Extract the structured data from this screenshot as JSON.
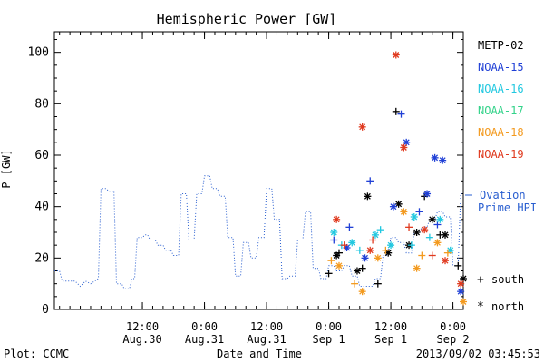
{
  "chart_data": {
    "type": "scatter",
    "title": "Hemispheric Power [GW]",
    "ylabel": "P [GW]",
    "xlabel": "Date and Time",
    "ylim": [
      0,
      108
    ],
    "xlim": [
      "2013-08-29T19:00",
      "2013-09-02T02:00"
    ],
    "grid": false,
    "y_ticks": [
      0,
      20,
      40,
      60,
      80,
      100
    ],
    "x_ticks": [
      {
        "t": "2013-08-30T12:00",
        "line1": "12:00",
        "line2": "Aug.30"
      },
      {
        "t": "2013-08-31T00:00",
        "line1": "0:00",
        "line2": "Aug.31"
      },
      {
        "t": "2013-08-31T12:00",
        "line1": "12:00",
        "line2": "Aug.31"
      },
      {
        "t": "2013-09-01T00:00",
        "line1": "0:00",
        "line2": "Sep 1"
      },
      {
        "t": "2013-09-01T12:00",
        "line1": "12:00",
        "line2": "Sep 1"
      },
      {
        "t": "2013-09-02T00:00",
        "line1": "0:00",
        "line2": "Sep 2"
      }
    ],
    "legend_placement": "right",
    "legend": [
      {
        "name": "METP-02",
        "color": "#000000"
      },
      {
        "name": "NOAA-15",
        "color": "#1f3fd6"
      },
      {
        "name": "NOAA-16",
        "color": "#22c8e0"
      },
      {
        "name": "NOAA-17",
        "color": "#33d38a"
      },
      {
        "name": "NOAA-18",
        "color": "#f39a1f"
      },
      {
        "name": "NOAA-19",
        "color": "#e03a1f"
      }
    ],
    "ovation": {
      "name_line1": "Ovation",
      "name_line2": "Prime HPI",
      "color": "#2a5fd0",
      "points": [
        [
          "2013-08-29T19:00",
          15
        ],
        [
          "2013-08-29T20:00",
          15
        ],
        [
          "2013-08-29T20:30",
          11
        ],
        [
          "2013-08-29T23:00",
          11
        ],
        [
          "2013-08-30T00:00",
          9
        ],
        [
          "2013-08-30T01:00",
          11
        ],
        [
          "2013-08-30T02:00",
          10
        ],
        [
          "2013-08-30T03:30",
          12
        ],
        [
          "2013-08-30T04:00",
          47
        ],
        [
          "2013-08-30T05:00",
          47
        ],
        [
          "2013-08-30T05:30",
          46
        ],
        [
          "2013-08-30T06:30",
          46
        ],
        [
          "2013-08-30T07:00",
          10
        ],
        [
          "2013-08-30T08:00",
          10
        ],
        [
          "2013-08-30T08:30",
          8
        ],
        [
          "2013-08-30T09:30",
          8
        ],
        [
          "2013-08-30T10:00",
          12
        ],
        [
          "2013-08-30T10:30",
          12
        ],
        [
          "2013-08-30T11:00",
          28
        ],
        [
          "2013-08-30T12:00",
          28
        ],
        [
          "2013-08-30T12:30",
          29
        ],
        [
          "2013-08-30T13:00",
          29
        ],
        [
          "2013-08-30T13:30",
          27
        ],
        [
          "2013-08-30T14:30",
          27
        ],
        [
          "2013-08-30T15:00",
          25
        ],
        [
          "2013-08-30T16:00",
          25
        ],
        [
          "2013-08-30T16:30",
          23
        ],
        [
          "2013-08-30T17:30",
          23
        ],
        [
          "2013-08-30T18:00",
          21
        ],
        [
          "2013-08-30T19:00",
          21
        ],
        [
          "2013-08-30T19:30",
          45
        ],
        [
          "2013-08-30T20:30",
          45
        ],
        [
          "2013-08-30T21:00",
          27
        ],
        [
          "2013-08-30T22:00",
          27
        ],
        [
          "2013-08-30T22:30",
          45
        ],
        [
          "2013-08-30T23:30",
          45
        ],
        [
          "2013-08-31T00:00",
          52
        ],
        [
          "2013-08-31T01:00",
          52
        ],
        [
          "2013-08-31T01:30",
          47
        ],
        [
          "2013-08-31T02:30",
          47
        ],
        [
          "2013-08-31T03:00",
          44
        ],
        [
          "2013-08-31T04:00",
          44
        ],
        [
          "2013-08-31T04:30",
          28
        ],
        [
          "2013-08-31T05:30",
          28
        ],
        [
          "2013-08-31T06:00",
          13
        ],
        [
          "2013-08-31T07:00",
          13
        ],
        [
          "2013-08-31T07:30",
          26
        ],
        [
          "2013-08-31T08:30",
          26
        ],
        [
          "2013-08-31T09:00",
          20
        ],
        [
          "2013-08-31T10:00",
          20
        ],
        [
          "2013-08-31T10:30",
          28
        ],
        [
          "2013-08-31T11:30",
          28
        ],
        [
          "2013-08-31T12:00",
          47
        ],
        [
          "2013-08-31T13:00",
          47
        ],
        [
          "2013-08-31T13:30",
          35
        ],
        [
          "2013-08-31T14:30",
          35
        ],
        [
          "2013-08-31T15:00",
          12
        ],
        [
          "2013-08-31T16:00",
          12
        ],
        [
          "2013-08-31T16:30",
          13
        ],
        [
          "2013-08-31T17:30",
          13
        ],
        [
          "2013-08-31T18:00",
          27
        ],
        [
          "2013-08-31T19:00",
          27
        ],
        [
          "2013-08-31T19:30",
          38
        ],
        [
          "2013-08-31T20:30",
          38
        ],
        [
          "2013-08-31T21:00",
          16
        ],
        [
          "2013-08-31T22:00",
          16
        ],
        [
          "2013-08-31T22:30",
          12
        ],
        [
          "2013-08-31T23:30",
          12
        ],
        [
          "2013-09-01T00:00",
          17
        ],
        [
          "2013-09-01T01:00",
          17
        ],
        [
          "2013-09-01T01:30",
          15
        ],
        [
          "2013-09-01T02:30",
          15
        ],
        [
          "2013-09-01T03:00",
          17
        ],
        [
          "2013-09-01T04:00",
          17
        ],
        [
          "2013-09-01T04:30",
          13
        ],
        [
          "2013-09-01T05:30",
          13
        ],
        [
          "2013-09-01T06:00",
          9
        ],
        [
          "2013-09-01T08:30",
          9
        ],
        [
          "2013-09-01T09:00",
          12
        ],
        [
          "2013-09-01T10:00",
          12
        ],
        [
          "2013-09-01T10:30",
          21
        ],
        [
          "2013-09-01T11:30",
          21
        ],
        [
          "2013-09-01T12:00",
          28
        ],
        [
          "2013-09-01T13:00",
          28
        ],
        [
          "2013-09-01T13:30",
          26
        ],
        [
          "2013-09-01T14:30",
          26
        ],
        [
          "2013-09-01T15:00",
          22
        ],
        [
          "2013-09-01T16:00",
          22
        ],
        [
          "2013-09-01T16:30",
          30
        ],
        [
          "2013-09-01T17:30",
          30
        ],
        [
          "2013-09-01T18:00",
          32
        ],
        [
          "2013-09-01T19:00",
          32
        ],
        [
          "2013-09-01T19:30",
          35
        ],
        [
          "2013-09-01T20:30",
          35
        ],
        [
          "2013-09-01T21:00",
          38
        ],
        [
          "2013-09-01T22:00",
          38
        ],
        [
          "2013-09-01T22:30",
          36
        ],
        [
          "2013-09-01T23:30",
          36
        ],
        [
          "2013-09-02T00:00",
          17
        ],
        [
          "2013-09-02T01:00",
          17
        ],
        [
          "2013-09-02T01:30",
          45
        ],
        [
          "2013-09-02T02:00",
          45
        ]
      ]
    },
    "markers": {
      "south_symbol": "+",
      "south_label": "south",
      "north_symbol": "*",
      "north_label": "north"
    },
    "series": [
      {
        "name": "METP-02",
        "color": "#000000",
        "south": [
          [
            "2013-09-01T00:00",
            14
          ],
          [
            "2013-09-01T02:00",
            22
          ],
          [
            "2013-09-01T06:30",
            16
          ],
          [
            "2013-09-01T09:30",
            10
          ],
          [
            "2013-09-01T13:00",
            77
          ],
          [
            "2013-09-01T18:30",
            44
          ],
          [
            "2013-09-01T21:30",
            29
          ],
          [
            "2013-09-02T01:00",
            17
          ]
        ],
        "north": [
          [
            "2013-09-01T01:30",
            21
          ],
          [
            "2013-09-01T05:30",
            15
          ],
          [
            "2013-09-01T07:30",
            44
          ],
          [
            "2013-09-01T11:30",
            22
          ],
          [
            "2013-09-01T13:30",
            41
          ],
          [
            "2013-09-01T15:30",
            25
          ],
          [
            "2013-09-01T17:00",
            30
          ],
          [
            "2013-09-01T20:00",
            35
          ],
          [
            "2013-09-01T22:30",
            29
          ],
          [
            "2013-09-02T02:00",
            12
          ]
        ]
      },
      {
        "name": "NOAA-15",
        "color": "#1f3fd6",
        "south": [
          [
            "2013-09-01T01:00",
            27
          ],
          [
            "2013-09-01T04:00",
            32
          ],
          [
            "2013-09-01T08:00",
            50
          ],
          [
            "2013-09-01T14:00",
            76
          ],
          [
            "2013-09-01T17:30",
            38
          ],
          [
            "2013-09-01T21:00",
            33
          ]
        ],
        "north": [
          [
            "2013-09-01T03:30",
            24
          ],
          [
            "2013-09-01T07:00",
            20
          ],
          [
            "2013-09-01T12:30",
            40
          ],
          [
            "2013-09-01T15:00",
            65
          ],
          [
            "2013-09-01T19:00",
            45
          ],
          [
            "2013-09-01T20:30",
            59
          ],
          [
            "2013-09-01T22:00",
            58
          ],
          [
            "2013-09-02T01:30",
            7
          ]
        ]
      },
      {
        "name": "NOAA-16",
        "color": "#22c8e0",
        "south": [
          [
            "2013-09-01T02:30",
            25
          ],
          [
            "2013-09-01T06:00",
            23
          ],
          [
            "2013-09-01T10:00",
            31
          ],
          [
            "2013-09-01T16:00",
            25
          ],
          [
            "2013-09-01T19:30",
            28
          ]
        ],
        "north": [
          [
            "2013-09-01T01:00",
            30
          ],
          [
            "2013-09-01T04:30",
            26
          ],
          [
            "2013-09-01T09:00",
            29
          ],
          [
            "2013-09-01T12:00",
            25
          ],
          [
            "2013-09-01T16:30",
            36
          ],
          [
            "2013-09-01T21:30",
            35
          ],
          [
            "2013-09-01T23:30",
            23
          ]
        ]
      },
      {
        "name": "NOAA-17",
        "color": "#33d38a",
        "south": [],
        "north": []
      },
      {
        "name": "NOAA-18",
        "color": "#f39a1f",
        "south": [
          [
            "2013-09-01T00:30",
            19
          ],
          [
            "2013-09-01T05:00",
            10
          ],
          [
            "2013-09-01T11:00",
            23
          ],
          [
            "2013-09-01T18:00",
            21
          ],
          [
            "2013-09-01T23:00",
            22
          ]
        ],
        "north": [
          [
            "2013-09-01T02:00",
            17
          ],
          [
            "2013-09-01T06:30",
            7
          ],
          [
            "2013-09-01T09:30",
            20
          ],
          [
            "2013-09-01T14:30",
            38
          ],
          [
            "2013-09-01T17:00",
            16
          ],
          [
            "2013-09-01T21:00",
            26
          ],
          [
            "2013-09-02T02:00",
            3
          ]
        ]
      },
      {
        "name": "NOAA-19",
        "color": "#e03a1f",
        "south": [
          [
            "2013-09-01T03:00",
            25
          ],
          [
            "2013-09-01T08:30",
            27
          ],
          [
            "2013-09-01T15:30",
            32
          ],
          [
            "2013-09-01T20:00",
            21
          ]
        ],
        "north": [
          [
            "2013-09-01T01:30",
            35
          ],
          [
            "2013-09-01T06:30",
            71
          ],
          [
            "2013-09-01T08:00",
            23
          ],
          [
            "2013-09-01T13:00",
            99
          ],
          [
            "2013-09-01T14:30",
            63
          ],
          [
            "2013-09-01T18:30",
            31
          ],
          [
            "2013-09-01T22:30",
            19
          ],
          [
            "2013-09-02T01:30",
            10
          ]
        ]
      }
    ],
    "footer_left": "Plot: CCMC",
    "footer_right": "2013/09/02 03:45:53"
  }
}
